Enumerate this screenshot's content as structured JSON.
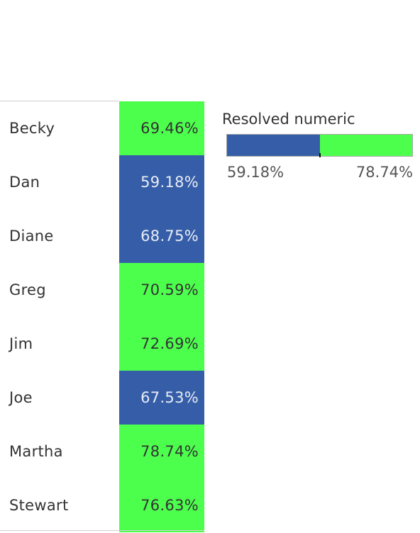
{
  "colors": {
    "low": "#365ea8",
    "high": "#4dff4d",
    "low_text": "#e8ecf5",
    "high_text": "#333333"
  },
  "chart_data": {
    "type": "table",
    "title": "",
    "rows": [
      {
        "name": "Becky",
        "value": 69.46,
        "label": "69.46%"
      },
      {
        "name": "Dan",
        "value": 59.18,
        "label": "59.18%"
      },
      {
        "name": "Diane",
        "value": 68.75,
        "label": "68.75%"
      },
      {
        "name": "Greg",
        "value": 70.59,
        "label": "70.59%"
      },
      {
        "name": "Jim",
        "value": 72.69,
        "label": "72.69%"
      },
      {
        "name": "Joe",
        "value": 67.53,
        "label": "67.53%"
      },
      {
        "name": "Martha",
        "value": 78.74,
        "label": "78.74%"
      },
      {
        "name": "Stewart",
        "value": 76.63,
        "label": "76.63%"
      }
    ],
    "legend": {
      "title": "Resolved numeric",
      "min_label": "59.18%",
      "max_label": "78.74%",
      "min": 59.18,
      "max": 78.74,
      "threshold": 69.0,
      "placement": "top-right"
    }
  }
}
